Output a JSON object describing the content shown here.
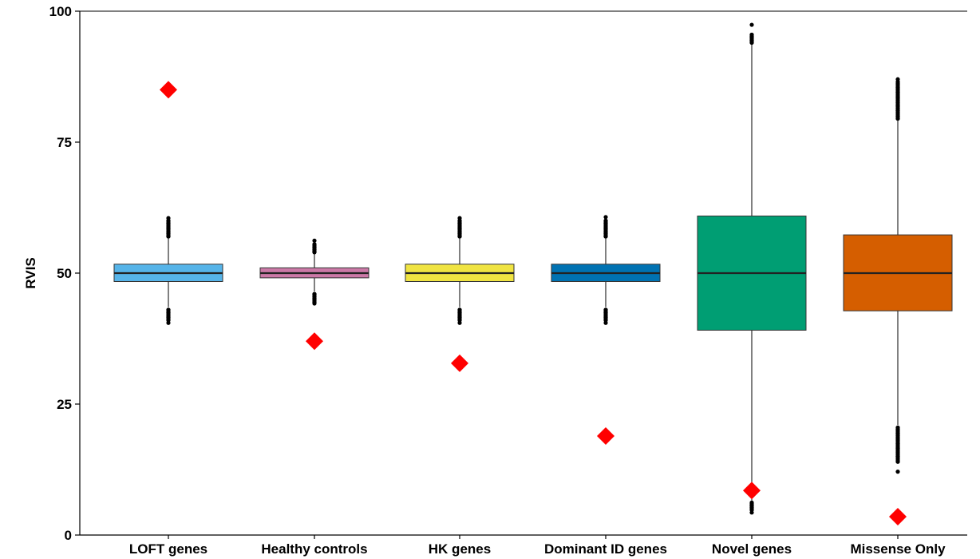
{
  "chart_data": {
    "type": "box",
    "ylabel": "RVIS",
    "xlabel": "",
    "ylim": [
      0,
      100
    ],
    "yticks": [
      0,
      25,
      50,
      75,
      100
    ],
    "grid": false,
    "legend": "none",
    "categories": [
      "LOFT genes",
      "Healthy controls",
      "HK genes",
      "Dominant ID genes",
      "Novel genes",
      "Missense Only"
    ],
    "colors": [
      "#56B4E9",
      "#CC79A7",
      "#F0E442",
      "#0072B2",
      "#009E73",
      "#D55E00"
    ],
    "marker_color": "#FF0000",
    "boxes": [
      {
        "q1": 48.4,
        "median": 50.0,
        "q3": 51.7,
        "whisker_low": 43.5,
        "whisker_high": 56.7,
        "outliers_low": [
          43.0,
          42.5,
          42.0,
          41.5,
          41.0,
          40.5
        ],
        "outliers_high": [
          57.0,
          57.5,
          58.0,
          58.5,
          59.0,
          59.5,
          60.0,
          60.5
        ]
      },
      {
        "q1": 49.1,
        "median": 50.0,
        "q3": 51.0,
        "whisker_low": 46.5,
        "whisker_high": 53.8,
        "outliers_low": [
          46.0,
          45.5,
          45.0,
          44.5,
          44.2
        ],
        "outliers_high": [
          54.0,
          54.5,
          55.0,
          55.5,
          56.2
        ]
      },
      {
        "q1": 48.4,
        "median": 50.0,
        "q3": 51.7,
        "whisker_low": 43.5,
        "whisker_high": 56.7,
        "outliers_low": [
          43.0,
          42.5,
          42.0,
          41.5,
          41.0,
          40.5
        ],
        "outliers_high": [
          57.0,
          57.5,
          58.0,
          58.5,
          59.0,
          59.5,
          60.0,
          60.5
        ]
      },
      {
        "q1": 48.4,
        "median": 50.0,
        "q3": 51.7,
        "whisker_low": 43.5,
        "whisker_high": 56.7,
        "outliers_low": [
          43.0,
          42.5,
          42.0,
          41.5,
          41.0,
          40.5
        ],
        "outliers_high": [
          57.0,
          57.5,
          58.0,
          58.5,
          59.0,
          59.5,
          60.0,
          60.7
        ]
      },
      {
        "q1": 39.1,
        "median": 50.0,
        "q3": 60.9,
        "whisker_low": 6.6,
        "whisker_high": 93.8,
        "outliers_low": [
          6.2,
          5.7,
          5.2,
          4.8,
          4.3
        ],
        "outliers_high": [
          94.0,
          94.5,
          95.0,
          95.5,
          97.4
        ]
      },
      {
        "q1": 42.8,
        "median": 50.0,
        "q3": 57.3,
        "whisker_low": 21.0,
        "whisker_high": 79.2,
        "outliers_low": [
          20.5,
          20.0,
          19.5,
          19.0,
          18.5,
          18.0,
          17.5,
          17.0,
          16.5,
          16.0,
          15.5,
          15.0,
          14.0,
          12.1
        ],
        "outliers_high": [
          79.5,
          80.0,
          80.5,
          81.0,
          81.5,
          82.0,
          82.5,
          83.0,
          83.5,
          84.0,
          84.5,
          85.0,
          85.5,
          86.0,
          86.5,
          87.0
        ]
      }
    ],
    "markers": [
      85.0,
      37.0,
      32.8,
      18.9,
      8.5,
      3.5
    ]
  }
}
